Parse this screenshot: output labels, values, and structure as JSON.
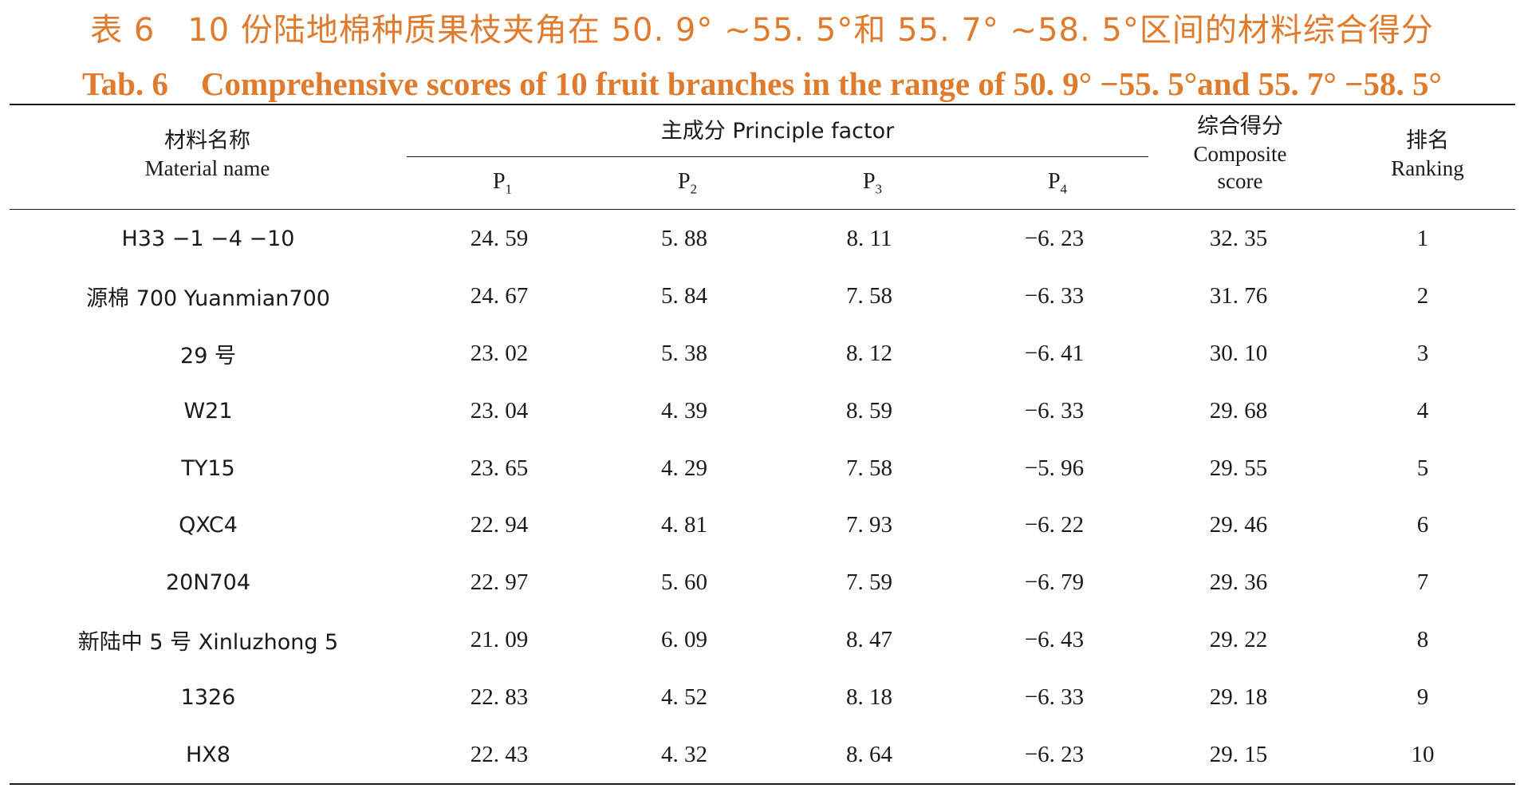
{
  "title_cn": "表 6　10 份陆地棉种质果枝夹角在 50. 9° ~55. 5°和 55. 7° ~58. 5°区间的材料综合得分",
  "title_en": "Tab. 6　Comprehensive scores of 10 fruit branches in the range of 50. 9° −55. 5°and 55. 7° −58. 5°",
  "header": {
    "material_cn": "材料名称",
    "material_en": "Material name",
    "principal_factor": "主成分 Principle factor",
    "p_letters": [
      "P",
      "P",
      "P",
      "P"
    ],
    "p_subs": [
      "1",
      "2",
      "3",
      "4"
    ],
    "composite_cn": "综合得分",
    "composite_en_1": "Composite",
    "composite_en_2": "score",
    "ranking_cn": "排名",
    "ranking_en": "Ranking"
  },
  "rows": [
    {
      "material": "H33 −1 −4 −10",
      "p1": "24. 59",
      "p2": "5. 88",
      "p3": "8. 11",
      "p4": "−6. 23",
      "score": "32. 35",
      "rank": "1"
    },
    {
      "material": "源棉 700 Yuanmian700",
      "p1": "24. 67",
      "p2": "5. 84",
      "p3": "7. 58",
      "p4": "−6. 33",
      "score": "31. 76",
      "rank": "2"
    },
    {
      "material": "29 号",
      "p1": "23. 02",
      "p2": "5. 38",
      "p3": "8. 12",
      "p4": "−6. 41",
      "score": "30. 10",
      "rank": "3"
    },
    {
      "material": "W21",
      "p1": "23. 04",
      "p2": "4. 39",
      "p3": "8. 59",
      "p4": "−6. 33",
      "score": "29. 68",
      "rank": "4"
    },
    {
      "material": "TY15",
      "p1": "23. 65",
      "p2": "4. 29",
      "p3": "7. 58",
      "p4": "−5. 96",
      "score": "29. 55",
      "rank": "5"
    },
    {
      "material": "QXC4",
      "p1": "22. 94",
      "p2": "4. 81",
      "p3": "7. 93",
      "p4": "−6. 22",
      "score": "29. 46",
      "rank": "6"
    },
    {
      "material": "20N704",
      "p1": "22. 97",
      "p2": "5. 60",
      "p3": "7. 59",
      "p4": "−6. 79",
      "score": "29. 36",
      "rank": "7"
    },
    {
      "material": "新陆中 5 号 Xinluzhong 5",
      "p1": "21. 09",
      "p2": "6. 09",
      "p3": "8. 47",
      "p4": "−6. 43",
      "score": "29. 22",
      "rank": "8"
    },
    {
      "material": "1326",
      "p1": "22. 83",
      "p2": "4. 52",
      "p3": "8. 18",
      "p4": "−6. 33",
      "score": "29. 18",
      "rank": "9"
    },
    {
      "material": "HX8",
      "p1": "22. 43",
      "p2": "4. 32",
      "p3": "8. 64",
      "p4": "−6. 23",
      "score": "29. 15",
      "rank": "10"
    }
  ],
  "colors": {
    "title": "#e07b2e",
    "text": "#1a1a1a",
    "rule": "#1a1a1a"
  }
}
